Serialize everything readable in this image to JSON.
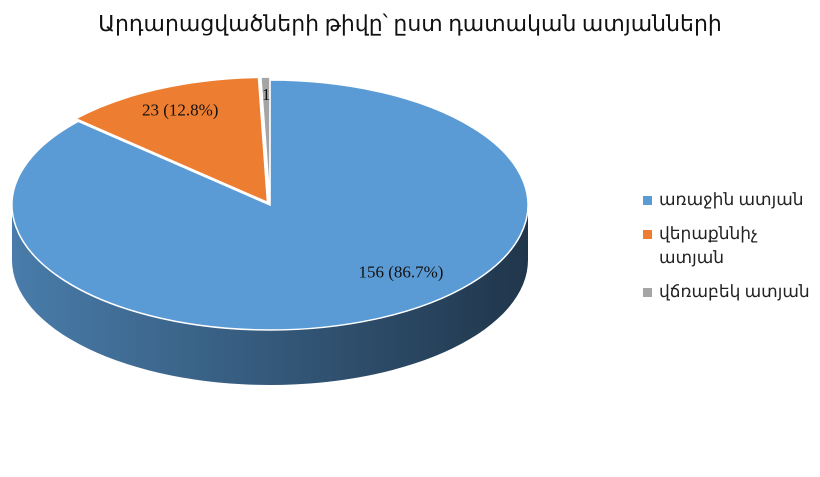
{
  "chart_data": {
    "type": "pie",
    "title": "Արդարացվածների թիվը՝ ըստ դատական ատյանների",
    "categories": [
      "առաջին ատյան",
      "վերաքննիչ ատյան",
      "վճռաբեկ ատյան"
    ],
    "values": [
      156,
      23,
      1
    ],
    "value_labels": [
      "156 (86.7%)",
      "23 (12.8%)",
      "1"
    ],
    "colors": [
      "#5b9bd5",
      "#ed7d31",
      "#a5a5a5"
    ],
    "legend": "right"
  }
}
